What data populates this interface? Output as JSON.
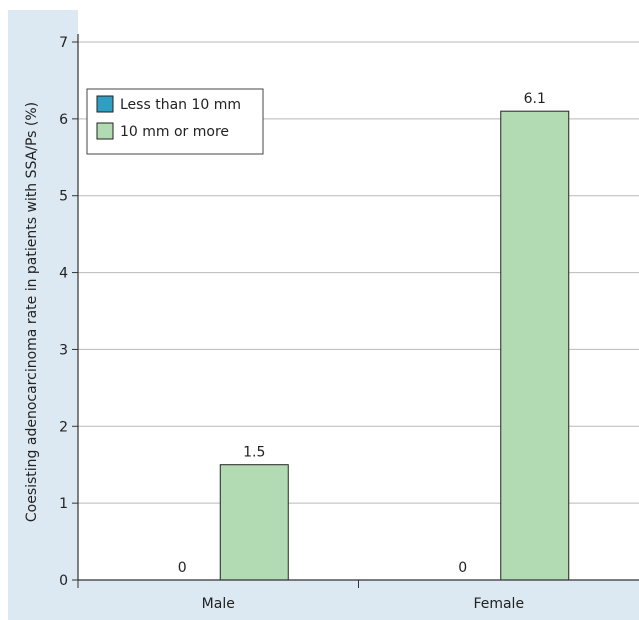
{
  "chart_data": {
    "type": "bar",
    "categories": [
      "Male",
      "Female"
    ],
    "series": [
      {
        "name": "Less than 10 mm",
        "values": [
          0,
          0
        ],
        "labels": [
          "0",
          "0"
        ]
      },
      {
        "name": "10 mm or more",
        "values": [
          1.5,
          6.1
        ],
        "labels": [
          "1.5",
          "6.1"
        ]
      }
    ],
    "title": "",
    "xlabel": "",
    "ylabel": "Coesisting adenocarcinoma rate in patients with SSA/Ps (%)",
    "ylim": [
      0,
      7
    ],
    "yticks": [
      0,
      1,
      2,
      3,
      4,
      5,
      6,
      7
    ],
    "grid": true,
    "legend_position": "top-left",
    "colors": {
      "background": "#dce9f2",
      "plot_area": "#ffffff",
      "series": [
        "#2f9fc4",
        "#b3dbb3"
      ],
      "bar_outline": "#222222",
      "grid": "#b9b9b9",
      "axis": "#333333"
    }
  }
}
